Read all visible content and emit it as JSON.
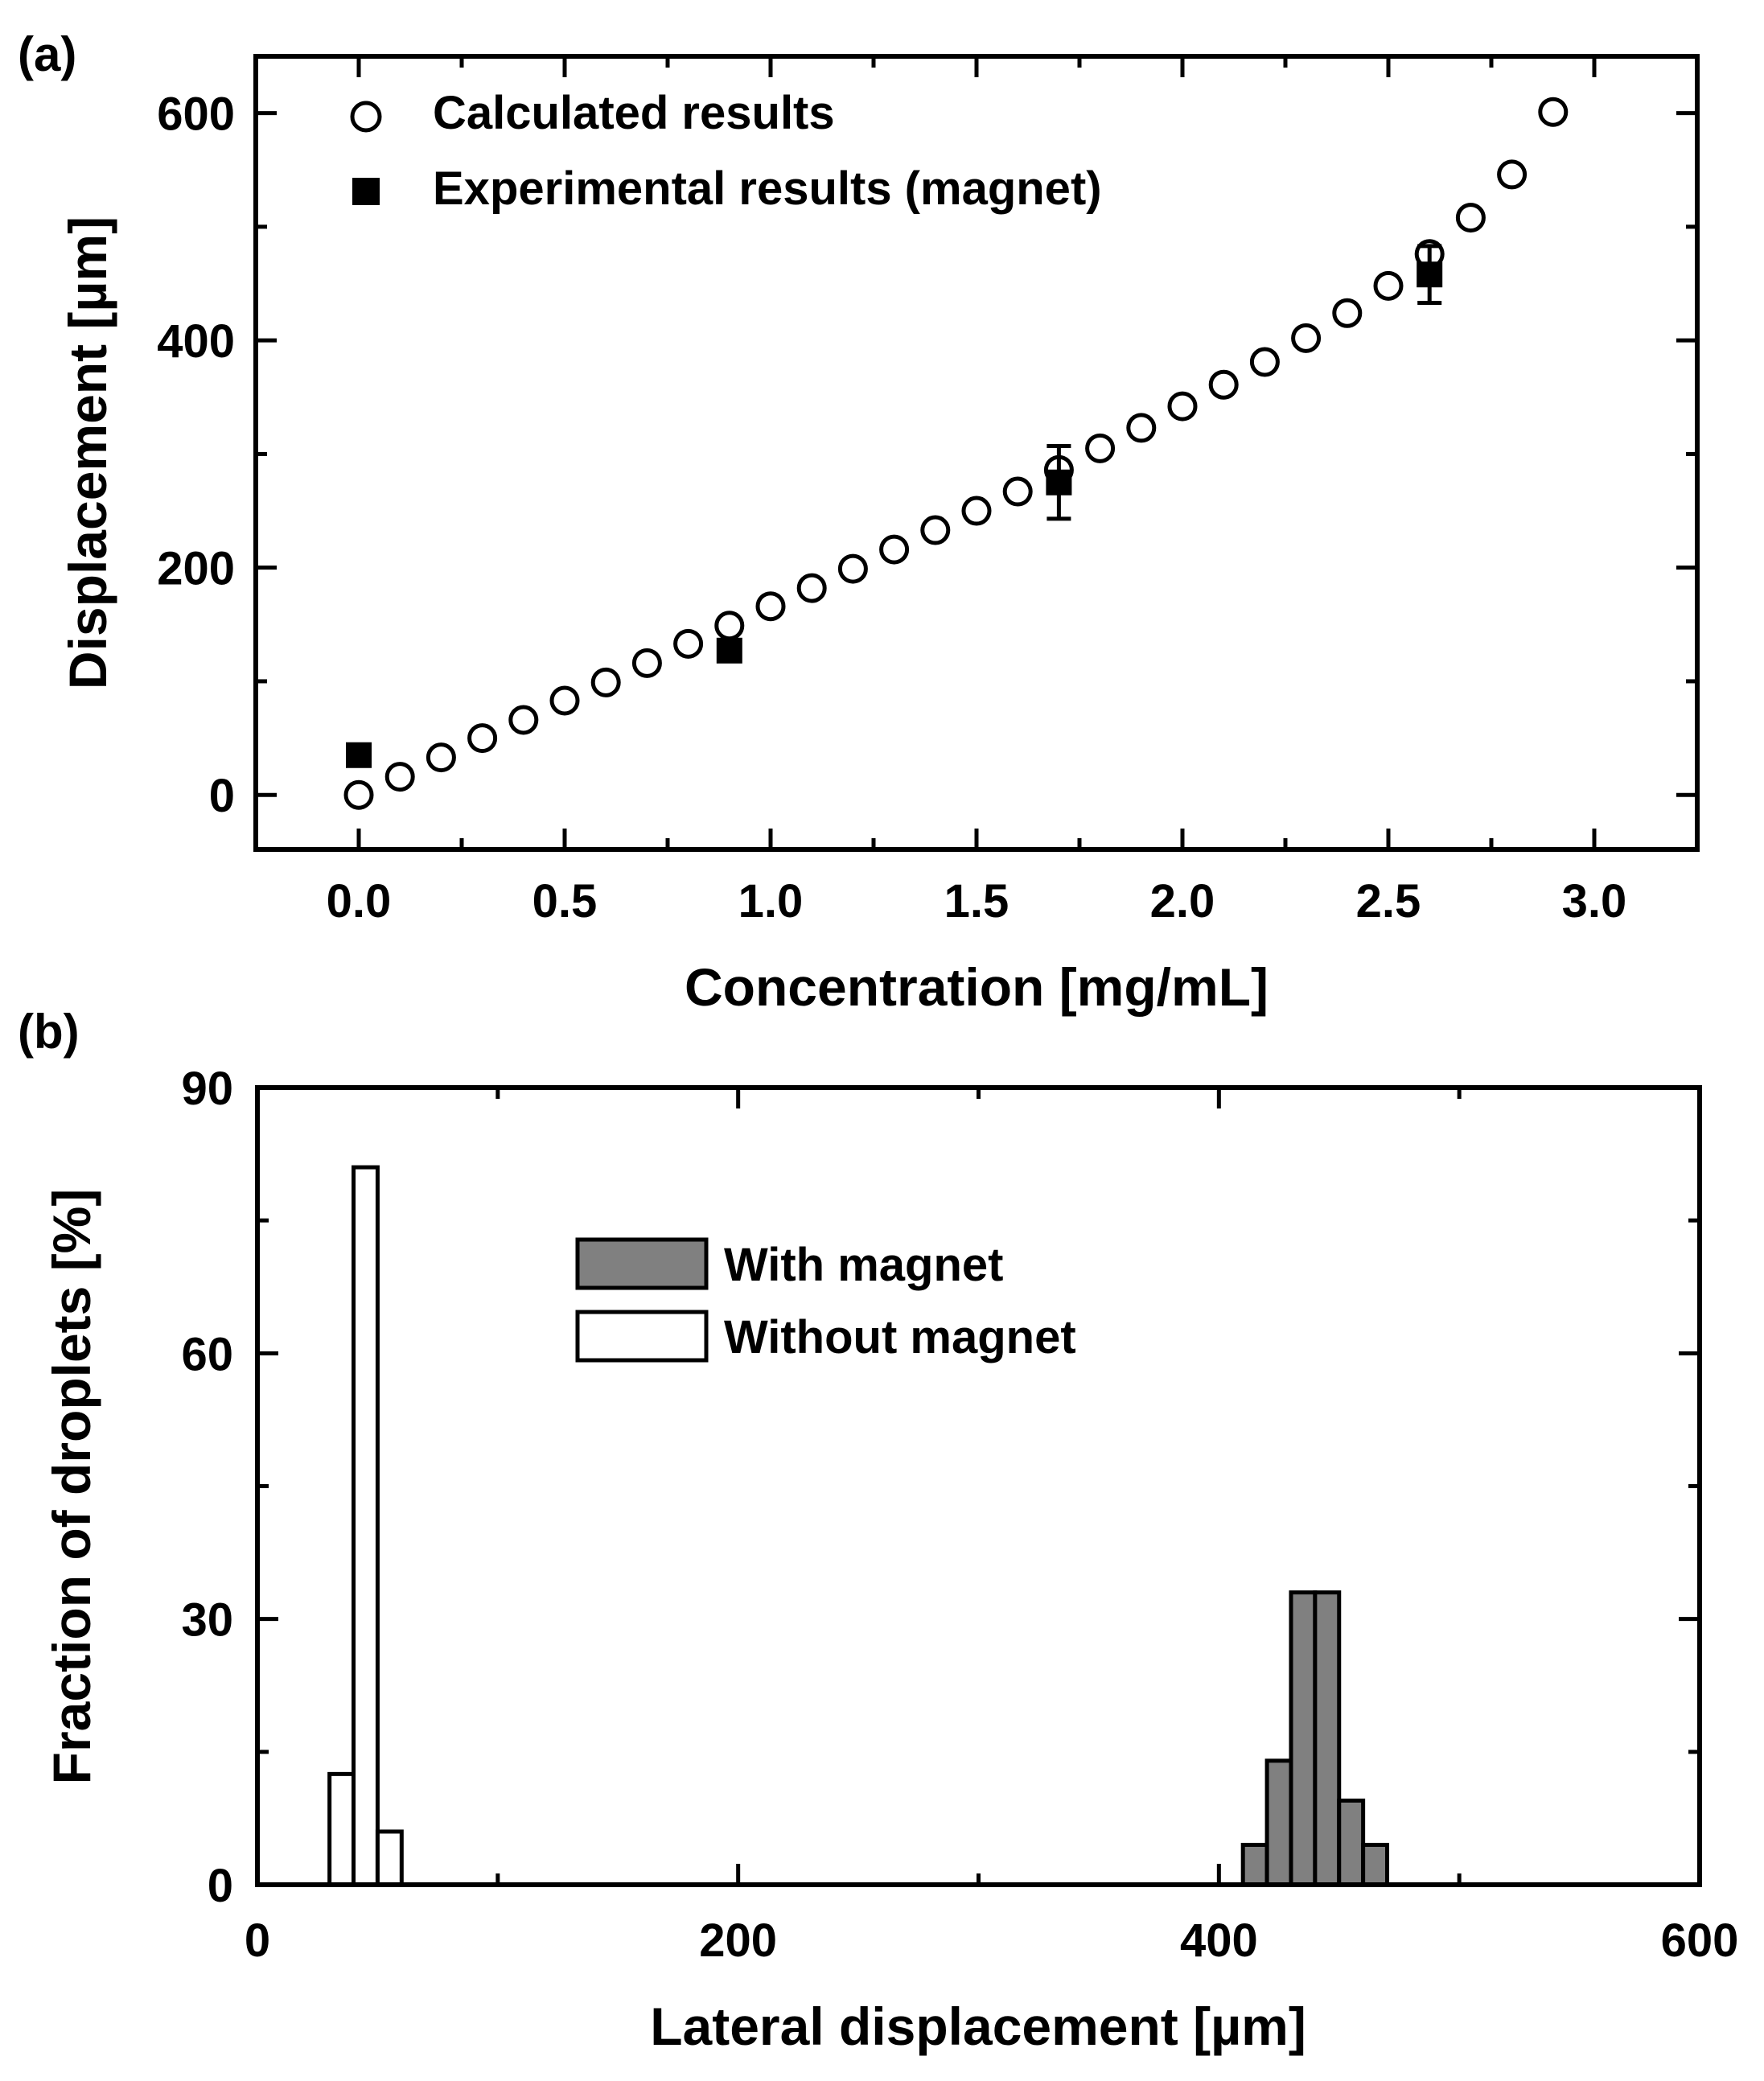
{
  "colors": {
    "ink": "#000000",
    "background": "#ffffff",
    "with_magnet_fill": "#808080",
    "without_magnet_fill": "#ffffff"
  },
  "chart_data": [
    {
      "panel_label": "(a)",
      "type": "scatter",
      "xlabel": "Concentration [mg/mL]",
      "ylabel": "Displacement [µm]",
      "xlim": [
        -0.25,
        3.25
      ],
      "ylim": [
        -48,
        650
      ],
      "x_ticks": [
        0.0,
        0.5,
        1.0,
        1.5,
        2.0,
        2.5,
        3.0
      ],
      "x_tick_labels": [
        "0.0",
        "0.5",
        "1.0",
        "1.5",
        "2.0",
        "2.5",
        "3.0"
      ],
      "x_minor_ticks": [
        0.25,
        0.75,
        1.25,
        1.75,
        2.25,
        2.75
      ],
      "y_ticks": [
        0,
        200,
        400,
        600
      ],
      "y_tick_labels": [
        "0",
        "200",
        "400",
        "600"
      ],
      "y_minor_ticks": [
        100,
        300,
        500
      ],
      "legend": {
        "position": "top-left",
        "entries": [
          {
            "label": "Calculated results",
            "marker": "open-circle"
          },
          {
            "label": "Experimental results (magnet)",
            "marker": "filled-square"
          }
        ]
      },
      "series": [
        {
          "name": "Calculated results",
          "marker": "open-circle",
          "x": [
            0.0,
            0.1,
            0.2,
            0.3,
            0.4,
            0.5,
            0.6,
            0.7,
            0.8,
            0.9,
            1.0,
            1.1,
            1.2,
            1.3,
            1.4,
            1.5,
            1.6,
            1.7,
            1.8,
            1.9,
            2.0,
            2.1,
            2.2,
            2.3,
            2.4,
            2.5,
            2.6,
            2.7,
            2.8,
            2.9
          ],
          "y": [
            0,
            16,
            33,
            50,
            66,
            83,
            99,
            116,
            133,
            149,
            166,
            182,
            199,
            216,
            233,
            250,
            267,
            286,
            305,
            323,
            342,
            361,
            381,
            402,
            424,
            448,
            476,
            508,
            546,
            601
          ]
        },
        {
          "name": "Experimental results (magnet)",
          "marker": "filled-square",
          "x": [
            0.0,
            0.9,
            1.7,
            2.6
          ],
          "y": [
            35,
            127,
            275,
            458
          ],
          "error": [
            0,
            0,
            32,
            25
          ]
        }
      ]
    },
    {
      "panel_label": "(b)",
      "type": "bar",
      "xlabel": "Lateral displacement [µm]",
      "ylabel": "Fraction of droplets [%]",
      "xlim": [
        0,
        600
      ],
      "ylim": [
        0,
        90
      ],
      "bin_width": 10,
      "x_ticks": [
        0,
        200,
        400,
        600
      ],
      "x_tick_labels": [
        "0",
        "200",
        "400",
        "600"
      ],
      "x_minor_ticks": [
        100,
        300,
        500
      ],
      "y_ticks": [
        0,
        30,
        60,
        90
      ],
      "y_tick_labels": [
        "0",
        "30",
        "60",
        "90"
      ],
      "y_minor_ticks": [
        15,
        45,
        75
      ],
      "legend": {
        "position": "upper-center",
        "entries": [
          {
            "label": "With magnet",
            "fill": "#808080"
          },
          {
            "label": "Without magnet",
            "fill": "#ffffff"
          }
        ]
      },
      "series": [
        {
          "name": "With magnet",
          "bin_centers": [
            415,
            425,
            435,
            445,
            455,
            465
          ],
          "values": [
            4.5,
            14,
            33,
            33,
            9.5,
            4.5
          ]
        },
        {
          "name": "Without magnet",
          "bin_centers": [
            35,
            45,
            55
          ],
          "values": [
            12.5,
            81,
            6
          ]
        }
      ]
    }
  ]
}
